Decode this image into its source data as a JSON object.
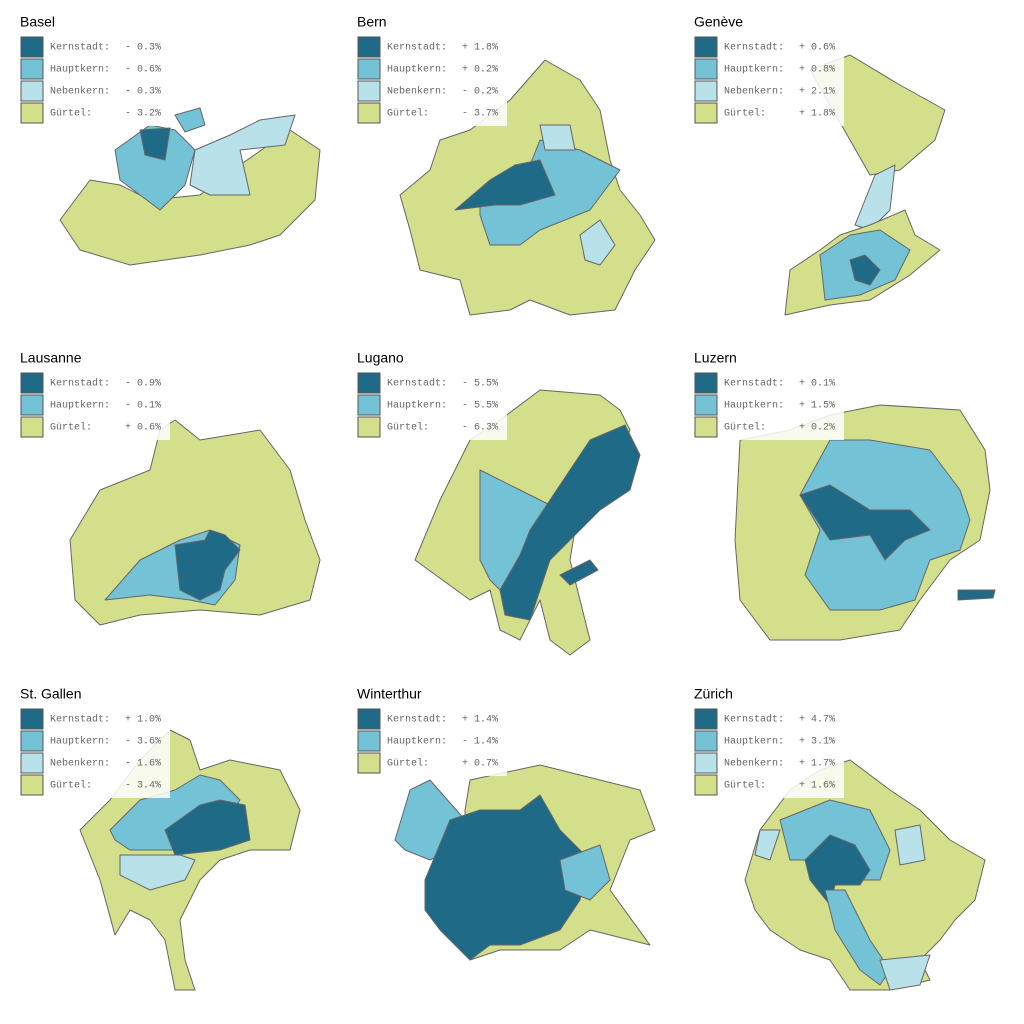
{
  "panels": [
    {
      "title": "Basel",
      "legend": [
        {
          "label": "Kernstadt:",
          "value": "- 0.3%",
          "color": "#1f6b87"
        },
        {
          "label": "Hauptkern:",
          "value": "- 0.6%",
          "color": "#74c2d6"
        },
        {
          "label": "Nebenkern:",
          "value": "- 0.3%",
          "color": "#b9e1ea"
        },
        {
          "label": "Gürtel:",
          "value": "- 3.2%",
          "color": "#d3df8b"
        }
      ]
    },
    {
      "title": "Bern",
      "legend": [
        {
          "label": "Kernstadt:",
          "value": "+ 1.8%",
          "color": "#1f6b87"
        },
        {
          "label": "Hauptkern:",
          "value": "+ 0.2%",
          "color": "#74c2d6"
        },
        {
          "label": "Nebenkern:",
          "value": "- 0.2%",
          "color": "#b9e1ea"
        },
        {
          "label": "Gürtel:",
          "value": "- 3.7%",
          "color": "#d3df8b"
        }
      ]
    },
    {
      "title": "Genève",
      "legend": [
        {
          "label": "Kernstadt:",
          "value": "+ 0.6%",
          "color": "#1f6b87"
        },
        {
          "label": "Hauptkern:",
          "value": "+ 0.8%",
          "color": "#74c2d6"
        },
        {
          "label": "Nebenkern:",
          "value": "+ 2.1%",
          "color": "#b9e1ea"
        },
        {
          "label": "Gürtel:",
          "value": "+ 1.8%",
          "color": "#d3df8b"
        }
      ]
    },
    {
      "title": "Lausanne",
      "legend": [
        {
          "label": "Kernstadt:",
          "value": "- 0.9%",
          "color": "#1f6b87"
        },
        {
          "label": "Hauptkern:",
          "value": "- 0.1%",
          "color": "#74c2d6"
        },
        {
          "label": "Gürtel:",
          "value": "+ 0.6%",
          "color": "#d3df8b"
        }
      ]
    },
    {
      "title": "Lugano",
      "legend": [
        {
          "label": "Kernstadt:",
          "value": "- 5.5%",
          "color": "#1f6b87"
        },
        {
          "label": "Hauptkern:",
          "value": "- 5.5%",
          "color": "#74c2d6"
        },
        {
          "label": "Gürtel:",
          "value": "- 6.3%",
          "color": "#d3df8b"
        }
      ]
    },
    {
      "title": "Luzern",
      "legend": [
        {
          "label": "Kernstadt:",
          "value": "+ 0.1%",
          "color": "#1f6b87"
        },
        {
          "label": "Hauptkern:",
          "value": "+ 1.5%",
          "color": "#74c2d6"
        },
        {
          "label": "Gürtel:",
          "value": "+ 0.2%",
          "color": "#d3df8b"
        }
      ]
    },
    {
      "title": "St. Gallen",
      "legend": [
        {
          "label": "Kernstadt:",
          "value": "+ 1.0%",
          "color": "#1f6b87"
        },
        {
          "label": "Hauptkern:",
          "value": "- 3.6%",
          "color": "#74c2d6"
        },
        {
          "label": "Nebenkern:",
          "value": "- 1.6%",
          "color": "#b9e1ea"
        },
        {
          "label": "Gürtel:",
          "value": "- 3.4%",
          "color": "#d3df8b"
        }
      ]
    },
    {
      "title": "Winterthur",
      "legend": [
        {
          "label": "Kernstadt:",
          "value": "+ 1.4%",
          "color": "#1f6b87"
        },
        {
          "label": "Hauptkern:",
          "value": "- 1.4%",
          "color": "#74c2d6"
        },
        {
          "label": "Gürtel:",
          "value": "+ 0.7%",
          "color": "#d3df8b"
        }
      ]
    },
    {
      "title": "Zürich",
      "legend": [
        {
          "label": "Kernstadt:",
          "value": "+ 4.7%",
          "color": "#1f6b87"
        },
        {
          "label": "Hauptkern:",
          "value": "+ 3.1%",
          "color": "#74c2d6"
        },
        {
          "label": "Nebenkern:",
          "value": "+ 1.7%",
          "color": "#b9e1ea"
        },
        {
          "label": "Gürtel:",
          "value": "+ 1.6%",
          "color": "#d3df8b"
        }
      ]
    }
  ]
}
